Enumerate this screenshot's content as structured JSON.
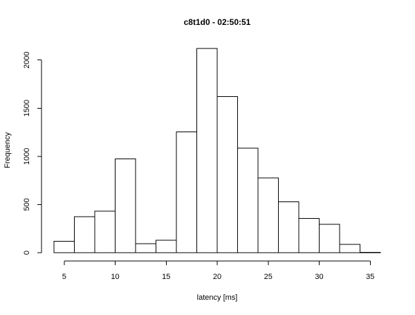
{
  "chart_data": {
    "type": "bar",
    "title": "c8t1d0 - 02:50:51",
    "xlabel": "latency [ms]",
    "ylabel": "Frequency",
    "bins": [
      {
        "x0": 4,
        "x1": 6,
        "value": 120
      },
      {
        "x0": 6,
        "x1": 8,
        "value": 375
      },
      {
        "x0": 8,
        "x1": 10,
        "value": 430
      },
      {
        "x0": 10,
        "x1": 12,
        "value": 975
      },
      {
        "x0": 12,
        "x1": 14,
        "value": 95
      },
      {
        "x0": 14,
        "x1": 16,
        "value": 130
      },
      {
        "x0": 16,
        "x1": 18,
        "value": 1255
      },
      {
        "x0": 18,
        "x1": 20,
        "value": 2120
      },
      {
        "x0": 20,
        "x1": 22,
        "value": 1620
      },
      {
        "x0": 22,
        "x1": 24,
        "value": 1085
      },
      {
        "x0": 24,
        "x1": 26,
        "value": 775
      },
      {
        "x0": 26,
        "x1": 28,
        "value": 530
      },
      {
        "x0": 28,
        "x1": 30,
        "value": 355
      },
      {
        "x0": 30,
        "x1": 32,
        "value": 295
      },
      {
        "x0": 32,
        "x1": 34,
        "value": 85
      },
      {
        "x0": 34,
        "x1": 36,
        "value": 5
      }
    ],
    "xticks": [
      5,
      10,
      15,
      20,
      25,
      30,
      35
    ],
    "yticks": [
      0,
      500,
      1000,
      1500,
      2000
    ],
    "xlim": [
      4,
      36
    ],
    "ylim": [
      0,
      2120
    ],
    "grid": false,
    "bar_fill": "#ffffff",
    "bar_stroke": "#000000"
  }
}
